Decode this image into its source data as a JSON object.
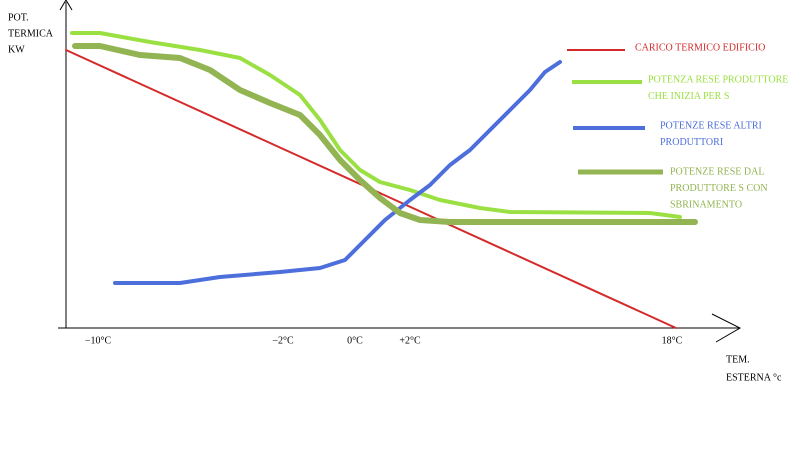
{
  "axes": {
    "y_label": [
      "POT.",
      "TERMICA",
      "KW"
    ],
    "x_label": [
      "TEM.",
      "ESTERNA °c"
    ],
    "x_ticks": [
      "−10°C",
      "−2°C",
      "0°C",
      "+2°C",
      "18°C"
    ]
  },
  "legend": [
    {
      "lines": [
        "CARICO TERMICO EDIFICIO"
      ],
      "color": "#d42a2a"
    },
    {
      "lines": [
        "POTENZA RESE PRODUTTORE",
        "CHE INIZIA PER S"
      ],
      "color": "#9be043"
    },
    {
      "lines": [
        "POTENZE RESE ALTRI",
        "PRODUTTORI"
      ],
      "color": "#4d6fdc"
    },
    {
      "lines": [
        "POTENZE RESE DAL",
        "PRODUTTORE S CON",
        "SBRINAMENTO"
      ],
      "color": "#93b452"
    }
  ]
}
